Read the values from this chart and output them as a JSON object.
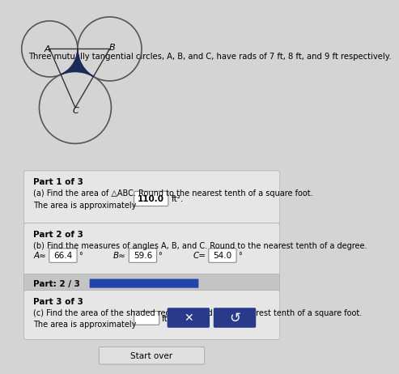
{
  "title": "Three mutually tangential circles, A, B, and C, have rads of 7 ft, 8 ft, and 9 ft respectively.",
  "r_A": 7,
  "r_B": 8,
  "r_C": 9,
  "bg_color": "#d4d4d4",
  "panel_color": "#c4c4c4",
  "white_panel": "#e6e6e6",
  "circle_edge": "#555555",
  "triangle_edge": "#333333",
  "shaded_color": "#1a2a5a",
  "part1_label": "Part 1 of 3",
  "part1_q": "(a) Find the area of △ABC. Round to the nearest tenth of a square foot.",
  "part1_ans": "The area is approximately",
  "part1_val": "110.0",
  "part1_unit": "ft².",
  "part2_label": "Part 2 of 3",
  "part2_q": "(b) Find the measures of angles A, B, and C. Round to the nearest tenth of a degree.",
  "A_val": "66.4",
  "B_val": "59.6",
  "C_val": "54.0",
  "part_progress_label": "Part: 2 / 3",
  "part3_label": "Part 3 of 3",
  "part3_q": "(c) Find the area of the shaded region. Round to the nearest tenth of a square foot.",
  "part3_ans": "The area is approximately",
  "part3_unit": "ft².",
  "btn_x_color": "#2a3a8a",
  "btn_refresh_color": "#2a3a8a",
  "progress_bar_color": "#2244aa",
  "start_over": "Start over"
}
